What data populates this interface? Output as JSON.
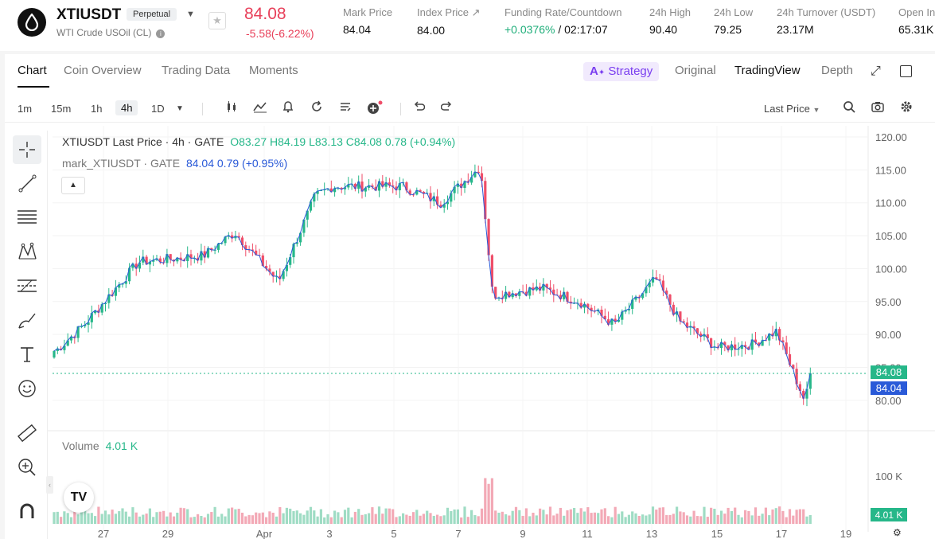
{
  "header": {
    "symbol": "XTIUSDT",
    "badge": "Perpetual",
    "subtitle": "WTI Crude USOil (CL)",
    "price": "84.08",
    "change": "-5.58(-6.22%)",
    "stats": [
      {
        "label": "Mark Price",
        "value": "84.04"
      },
      {
        "label": "Index Price ↗",
        "value": "84.00"
      },
      {
        "label": "Funding Rate/Countdown",
        "value_green": "+0.0376%",
        "value": " / 02:17:07"
      },
      {
        "label": "24h High",
        "value": "90.40"
      },
      {
        "label": "24h Low",
        "value": "79.25"
      },
      {
        "label": "24h Turnover (USDT)",
        "value": "23.17M"
      },
      {
        "label": "Open In",
        "value": "65.31K"
      }
    ]
  },
  "tabs": [
    "Chart",
    "Coin Overview",
    "Trading Data",
    "Moments"
  ],
  "view_tabs": {
    "strategy": "Strategy",
    "original": "Original",
    "tradingview": "TradingView",
    "depth": "Depth"
  },
  "intervals": [
    "1m",
    "15m",
    "1h",
    "4h",
    "1D"
  ],
  "active_interval": "4h",
  "price_type": "Last Price",
  "legend": {
    "main_name": "XTIUSDT Last Price · 4h · GATE",
    "o": "O83.27",
    "h": "H84.19",
    "l": "L83.13",
    "c": "C84.08",
    "chg": "0.78 (+0.94%)",
    "mark_name": "mark_XTIUSDT · GATE",
    "mark_val": "84.04",
    "mark_chg": "0.79 (+0.95%)",
    "volume_label": "Volume",
    "volume_val": "4.01 K"
  },
  "chart_data": {
    "type": "candlestick",
    "y_ticks": [
      120,
      115,
      110,
      105,
      100,
      95,
      90,
      85,
      80
    ],
    "y_tick_labels": [
      "120.00",
      "115.00",
      "110.00",
      "105.00",
      "100.00",
      "95.00",
      "90.00",
      "85.00",
      "80.00"
    ],
    "x_labels": [
      "27",
      "29",
      "Apr",
      "3",
      "5",
      "7",
      "9",
      "11",
      "13",
      "15",
      "17",
      "19"
    ],
    "last_price": "84.08",
    "mark_price": "84.04",
    "vol_tick_label": "100 K",
    "vol_last_label": "4.01 K",
    "close_path": [
      [
        "Mar 26",
        87.5
      ],
      [
        "Mar 27",
        91.5
      ],
      [
        "Mar 28",
        101
      ],
      [
        "Mar 29",
        101.5
      ],
      [
        "Mar 30",
        102
      ],
      [
        "Mar 31",
        105.5
      ],
      [
        "Apr 1",
        98
      ],
      [
        "Apr 2",
        111
      ],
      [
        "Apr 3",
        112.5
      ],
      [
        "Apr 5",
        112.5
      ],
      [
        "Apr 6",
        110
      ],
      [
        "Apr 7",
        115.5
      ],
      [
        "Apr 8",
        96
      ],
      [
        "Apr 9",
        97
      ],
      [
        "Apr 10",
        95
      ],
      [
        "Apr 11",
        91.5
      ],
      [
        "Apr 12",
        95.5
      ],
      [
        "Apr 13",
        98.5
      ],
      [
        "Apr 14",
        92
      ],
      [
        "Apr 15",
        88
      ],
      [
        "Apr 16",
        88.5
      ],
      [
        "Apr 17",
        90.5
      ],
      [
        "Apr 18",
        80
      ],
      [
        "Apr 18",
        84.08
      ]
    ],
    "colors": {
      "up": "#26b789",
      "down": "#ef4e69",
      "mark": "#2a5ad8",
      "vol_up": "#9fdcc4",
      "vol_down": "#f3a9b6"
    }
  }
}
